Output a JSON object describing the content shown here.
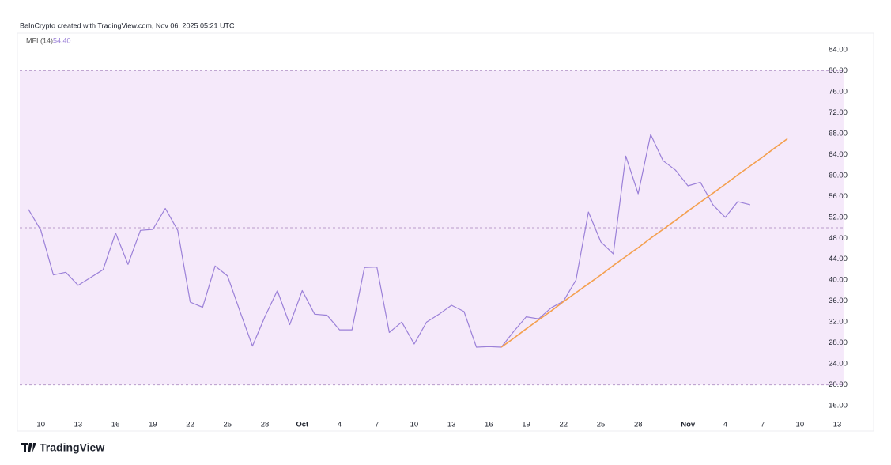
{
  "chart_data": {
    "type": "line",
    "source": "BeInCrypto created with TradingView.com, Nov 06, 2025 05:21 UTC",
    "brand": "TradingView",
    "categories": [
      null,
      "10",
      null,
      null,
      "13",
      null,
      null,
      "16",
      null,
      null,
      "19",
      null,
      null,
      "22",
      null,
      null,
      "25",
      null,
      null,
      "28",
      null,
      null,
      "Oct",
      null,
      null,
      "4",
      null,
      null,
      "7",
      null,
      null,
      "10",
      null,
      null,
      "13",
      null,
      null,
      "16",
      null,
      null,
      "19",
      null,
      null,
      "22",
      null,
      null,
      "25",
      null,
      null,
      "28",
      null,
      null,
      null,
      "Nov",
      null,
      null,
      "4",
      null,
      null,
      "7",
      null,
      null,
      "10",
      null,
      null,
      "13"
    ],
    "series": [
      {
        "name": "MFI (14)",
        "color": "#9b80d8",
        "values": [
          53.5,
          49.5,
          41,
          41.5,
          39,
          40.5,
          42,
          49,
          43,
          49.5,
          49.7,
          53.7,
          49.5,
          35.8,
          34.8,
          42.7,
          40.8,
          34,
          27.4,
          33,
          38,
          31.5,
          38,
          33.5,
          33.3,
          30.5,
          30.5,
          42.4,
          42.5,
          30,
          32,
          27.8,
          32,
          33.5,
          35.2,
          34,
          27.2,
          27.3,
          27.2,
          30.2,
          33,
          32.6,
          34.7,
          36,
          40,
          53,
          47.3,
          45,
          63.7,
          56.5,
          67.8,
          62.8,
          61,
          58,
          58.7,
          54.4,
          52,
          55,
          54.4,
          null,
          null,
          null,
          null,
          null,
          null,
          null
        ],
        "value_labels": [
          null,
          null,
          null,
          null,
          null,
          null,
          null,
          null,
          null,
          null,
          null,
          null,
          null,
          null,
          null,
          null,
          null,
          null,
          null,
          null,
          null,
          null,
          null,
          null,
          null,
          null,
          null,
          null,
          null,
          null,
          null,
          null,
          null,
          null,
          null,
          null,
          null,
          null,
          null,
          null,
          null,
          null,
          null,
          null,
          null,
          null,
          null,
          null,
          null,
          null,
          null,
          null,
          null,
          null,
          null,
          null,
          null,
          null,
          "54.40",
          null,
          null,
          null,
          null,
          null,
          null,
          null
        ]
      },
      {
        "color": "#f4a04f",
        "values": [
          null,
          null,
          null,
          null,
          null,
          null,
          null,
          null,
          null,
          null,
          null,
          null,
          null,
          null,
          null,
          null,
          null,
          null,
          null,
          null,
          null,
          null,
          null,
          null,
          null,
          null,
          null,
          null,
          null,
          null,
          null,
          null,
          null,
          null,
          null,
          null,
          null,
          null,
          27.2,
          28.9,
          30.7,
          32.4,
          34.1,
          35.9,
          37.6,
          39.3,
          41.0,
          42.8,
          44.5,
          46.2,
          48.0,
          49.7,
          51.4,
          53.2,
          54.9,
          56.6,
          58.3,
          60.1,
          61.8,
          63.5,
          65.3,
          67.0,
          null,
          null,
          null,
          null
        ]
      }
    ],
    "bands": {
      "upper": 80,
      "middle": 50,
      "lower": 20,
      "fill": "#f5e9fa",
      "line_color": "#b99ccb"
    },
    "ylim": [
      13.3,
      86.7
    ],
    "yticks": [
      {
        "value": 16,
        "label": "16.00"
      },
      {
        "value": 20,
        "label": "20.00"
      },
      {
        "value": 24,
        "label": "24.00"
      },
      {
        "value": 28,
        "label": "28.00"
      },
      {
        "value": 32,
        "label": "32.00"
      },
      {
        "value": 36,
        "label": "36.00"
      },
      {
        "value": 40,
        "label": "40.00"
      },
      {
        "value": 44,
        "label": "44.00"
      },
      {
        "value": 48,
        "label": "48.00"
      },
      {
        "value": 52,
        "label": "52.00"
      },
      {
        "value": 56,
        "label": "56.00"
      },
      {
        "value": 60,
        "label": "60.00"
      },
      {
        "value": 64,
        "label": "64.00"
      },
      {
        "value": 68,
        "label": "68.00"
      },
      {
        "value": 72,
        "label": "72.00"
      },
      {
        "value": 76,
        "label": "76.00"
      },
      {
        "value": 80,
        "label": "80.00"
      },
      {
        "value": 84,
        "label": "84.00"
      }
    ],
    "grid": false
  }
}
